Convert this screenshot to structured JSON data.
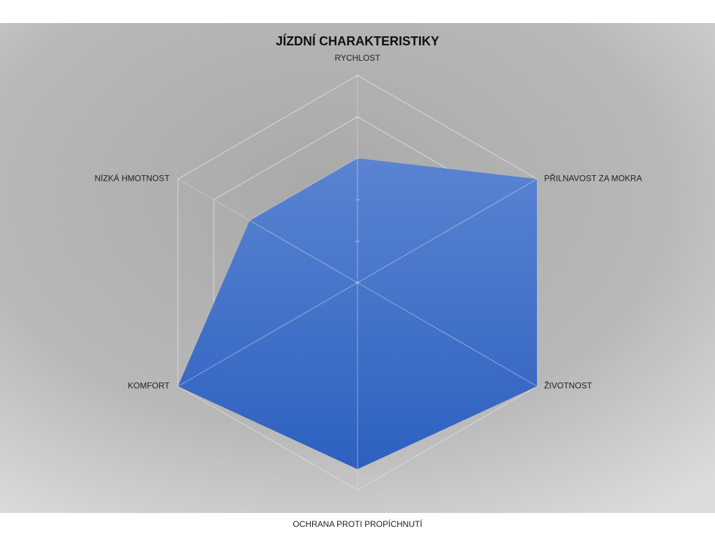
{
  "chart_data": {
    "type": "radar",
    "title": "JÍZDNÍ CHARAKTERISTIKY",
    "categories": [
      "RYCHLOST",
      "PŘILNAVOST ZA MOKRA",
      "ŽIVOTNOST",
      "OCHRANA PROTI PROPÍCHNUTÍ",
      "KOMFORT",
      "NÍZKÁ HMOTNOST"
    ],
    "values": [
      3,
      5,
      5,
      4.5,
      5,
      3
    ],
    "color": "#3f6fc9",
    "rlim": [
      0,
      5
    ],
    "rticks": [
      0,
      1,
      2,
      3,
      4,
      5
    ],
    "grid": true
  }
}
